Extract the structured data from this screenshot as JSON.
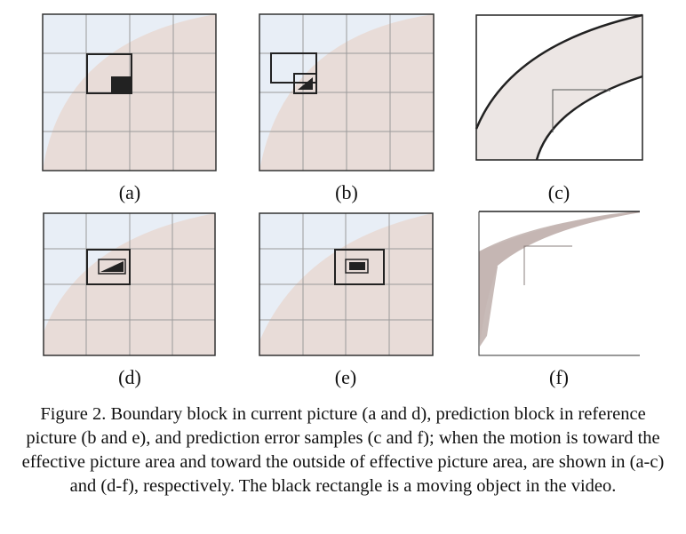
{
  "colors": {
    "effective_area": "#e8dcd8",
    "outside_area": "#e8eef6",
    "grid_line": "#9a9a9a",
    "frame": "#333333",
    "object": "#222222",
    "error_band_light": "#ece6e4",
    "error_band_dark": "#c8bbb8"
  },
  "panels": [
    {
      "id": "a",
      "label": "(a)"
    },
    {
      "id": "b",
      "label": "(b)"
    },
    {
      "id": "c",
      "label": "(c)"
    },
    {
      "id": "d",
      "label": "(d)"
    },
    {
      "id": "e",
      "label": "(e)"
    },
    {
      "id": "f",
      "label": "(f)"
    }
  ],
  "caption": "Figure 2. Boundary block in current picture (a and d), prediction block in reference picture (b and e), and prediction error samples (c and f); when the motion is toward the effective picture area and toward the outside of effective picture area, are shown in (a-c) and (d-f), respectively. The black rectangle is a moving object in the video."
}
